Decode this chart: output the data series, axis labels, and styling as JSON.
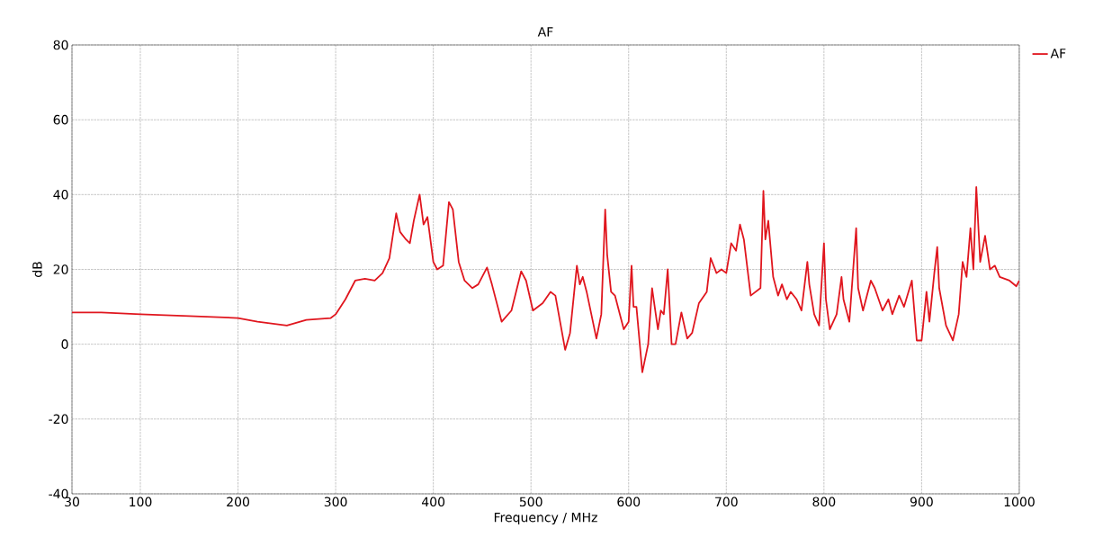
{
  "chart_data": {
    "type": "line",
    "title": "AF",
    "xlabel": "Frequency / MHz",
    "ylabel": "dB",
    "xlim": [
      30,
      1000
    ],
    "ylim": [
      -40,
      80
    ],
    "xticks": [
      30,
      100,
      200,
      300,
      400,
      500,
      600,
      700,
      800,
      900,
      1000
    ],
    "yticks": [
      -40,
      -20,
      0,
      20,
      40,
      60,
      80
    ],
    "grid": true,
    "legend": "top right",
    "line_style": "solid",
    "marker": "none",
    "series": [
      {
        "name": "AF",
        "color": "#e0161e",
        "x": [
          30,
          40,
          60,
          100,
          150,
          200,
          220,
          250,
          270,
          295,
          300,
          310,
          320,
          330,
          340,
          348,
          355,
          362,
          366,
          372,
          376,
          380,
          386,
          390,
          394,
          400,
          404,
          410,
          416,
          420,
          426,
          432,
          440,
          446,
          455,
          460,
          470,
          480,
          490,
          495,
          502,
          512,
          520,
          525,
          535,
          540,
          547,
          550,
          553,
          557,
          567,
          572,
          576,
          578,
          582,
          586,
          595,
          600,
          603,
          605,
          608,
          614,
          620,
          624,
          630,
          633,
          636,
          640,
          644,
          648,
          654,
          660,
          665,
          672,
          680,
          684,
          690,
          695,
          700,
          705,
          710,
          714,
          718,
          725,
          735,
          738,
          740,
          743,
          748,
          753,
          757,
          762,
          766,
          772,
          777,
          783,
          785,
          790,
          795,
          800,
          802,
          806,
          813,
          818,
          820,
          826,
          833,
          835,
          840,
          848,
          852,
          860,
          866,
          870,
          877,
          882,
          890,
          895,
          900,
          905,
          908,
          913,
          916,
          918,
          925,
          932,
          938,
          942,
          946,
          950,
          953,
          956,
          960,
          965,
          970,
          975,
          980,
          990,
          997,
          1000
        ],
        "values": [
          8.5,
          8.5,
          8.5,
          8,
          7.5,
          7,
          6,
          5,
          6.5,
          7,
          8,
          12,
          17,
          17.5,
          17,
          19,
          23,
          35,
          30,
          28,
          27,
          33,
          40,
          32,
          34,
          22,
          20,
          21,
          38,
          36,
          22,
          17,
          15,
          16,
          20.5,
          16,
          6,
          9,
          19.5,
          17,
          9,
          11,
          14,
          13,
          -1.5,
          3,
          21,
          16,
          18,
          14,
          1.5,
          8,
          36,
          24,
          14,
          13,
          4,
          6,
          21,
          10,
          10,
          -7.5,
          0,
          15,
          4,
          9,
          8,
          20,
          0,
          0,
          8.5,
          1.5,
          3,
          11,
          14,
          23,
          19,
          20,
          19,
          27,
          25,
          32,
          28,
          13,
          15,
          41,
          28,
          33,
          18,
          13,
          16,
          12,
          14,
          12,
          9,
          22,
          16,
          8,
          5,
          27,
          12,
          4,
          8,
          18,
          12,
          6,
          31,
          15,
          9,
          17,
          15,
          9,
          12,
          8,
          13,
          10,
          17,
          1,
          1,
          14,
          6,
          19,
          26,
          15,
          5,
          1,
          8,
          22,
          18,
          31,
          20,
          42,
          22,
          29,
          20,
          21,
          18,
          17,
          15.5,
          17
        ]
      }
    ]
  }
}
